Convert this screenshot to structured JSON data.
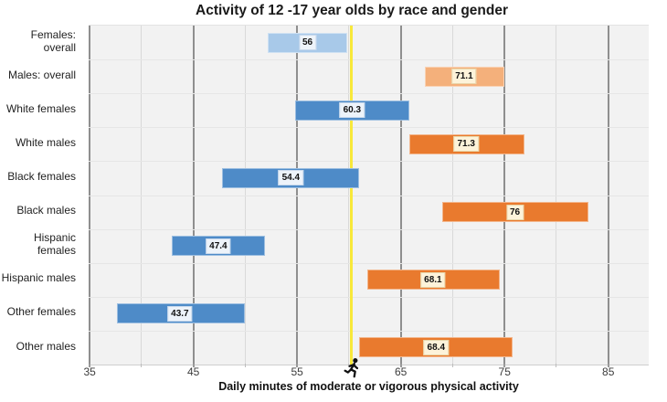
{
  "title": "Activity of 12 -17 year olds by race and gender",
  "xlabel": "Daily minutes of moderate or vigorous physical activity",
  "colors": {
    "bar_female_overall": "#a8c9e9",
    "bar_male_overall": "#f4b07b",
    "bar_female": "#4e8bc8",
    "bar_male": "#e97a2e",
    "value_box_female_bg": "#edf3fa",
    "value_box_female_border": "#c9d9ec",
    "value_box_male_bg": "#fdf3da",
    "value_box_male_border": "#e8d7ab",
    "reference_line": "#f8e83a",
    "plot_bg": "#f2f2f2",
    "grid_major": "#8f8f8f",
    "grid_minor": "#d9d9d9",
    "row_separator": "#e6e6e6",
    "tick_major": "#999999",
    "tick_minor": "#bdbdbd",
    "runner_icon": "#111111"
  },
  "chart_data": {
    "type": "bar",
    "subtype": "horizontal-range-bars-with-mean-labels",
    "title": "Activity of 12 -17 year olds by race and gender",
    "xlabel": "Daily minutes of moderate or vigorous physical activity",
    "xlim": [
      34.9,
      88.9
    ],
    "xticks": [
      35,
      45,
      55,
      65,
      75,
      85
    ],
    "minor_xticks": [
      40,
      50,
      60,
      70,
      80
    ],
    "grid": "on",
    "legend": "none",
    "reference_line": {
      "x": 60.2,
      "icon": "runner"
    },
    "rows": [
      {
        "category": "Females: overall",
        "value": 56,
        "label": "56",
        "low": 52.2,
        "high": 59.8,
        "group": "female_overall"
      },
      {
        "category": "Males: overall",
        "value": 71.1,
        "label": "71.1",
        "low": 67.3,
        "high": 75.0,
        "group": "male_overall"
      },
      {
        "category": "White females",
        "value": 60.3,
        "label": "60.3",
        "low": 54.8,
        "high": 65.8,
        "group": "female"
      },
      {
        "category": "White males",
        "value": 71.3,
        "label": "71.3",
        "low": 65.8,
        "high": 76.9,
        "group": "male"
      },
      {
        "category": "Black females",
        "value": 54.4,
        "label": "54.4",
        "low": 47.8,
        "high": 61.0,
        "group": "female"
      },
      {
        "category": "Black males",
        "value": 76,
        "label": "76",
        "low": 69.0,
        "high": 83.1,
        "group": "male"
      },
      {
        "category": "Hispanic\nfemales",
        "value": 47.4,
        "label": "47.4",
        "low": 42.9,
        "high": 51.9,
        "group": "female"
      },
      {
        "category": "Hispanic males",
        "value": 68.1,
        "label": "68.1",
        "low": 61.8,
        "high": 74.5,
        "group": "male"
      },
      {
        "category": "Other females",
        "value": 43.7,
        "label": "43.7",
        "low": 37.6,
        "high": 50.0,
        "group": "female"
      },
      {
        "category": "Other males",
        "value": 68.4,
        "label": "68.4",
        "low": 61.0,
        "high": 75.8,
        "group": "male"
      }
    ]
  }
}
